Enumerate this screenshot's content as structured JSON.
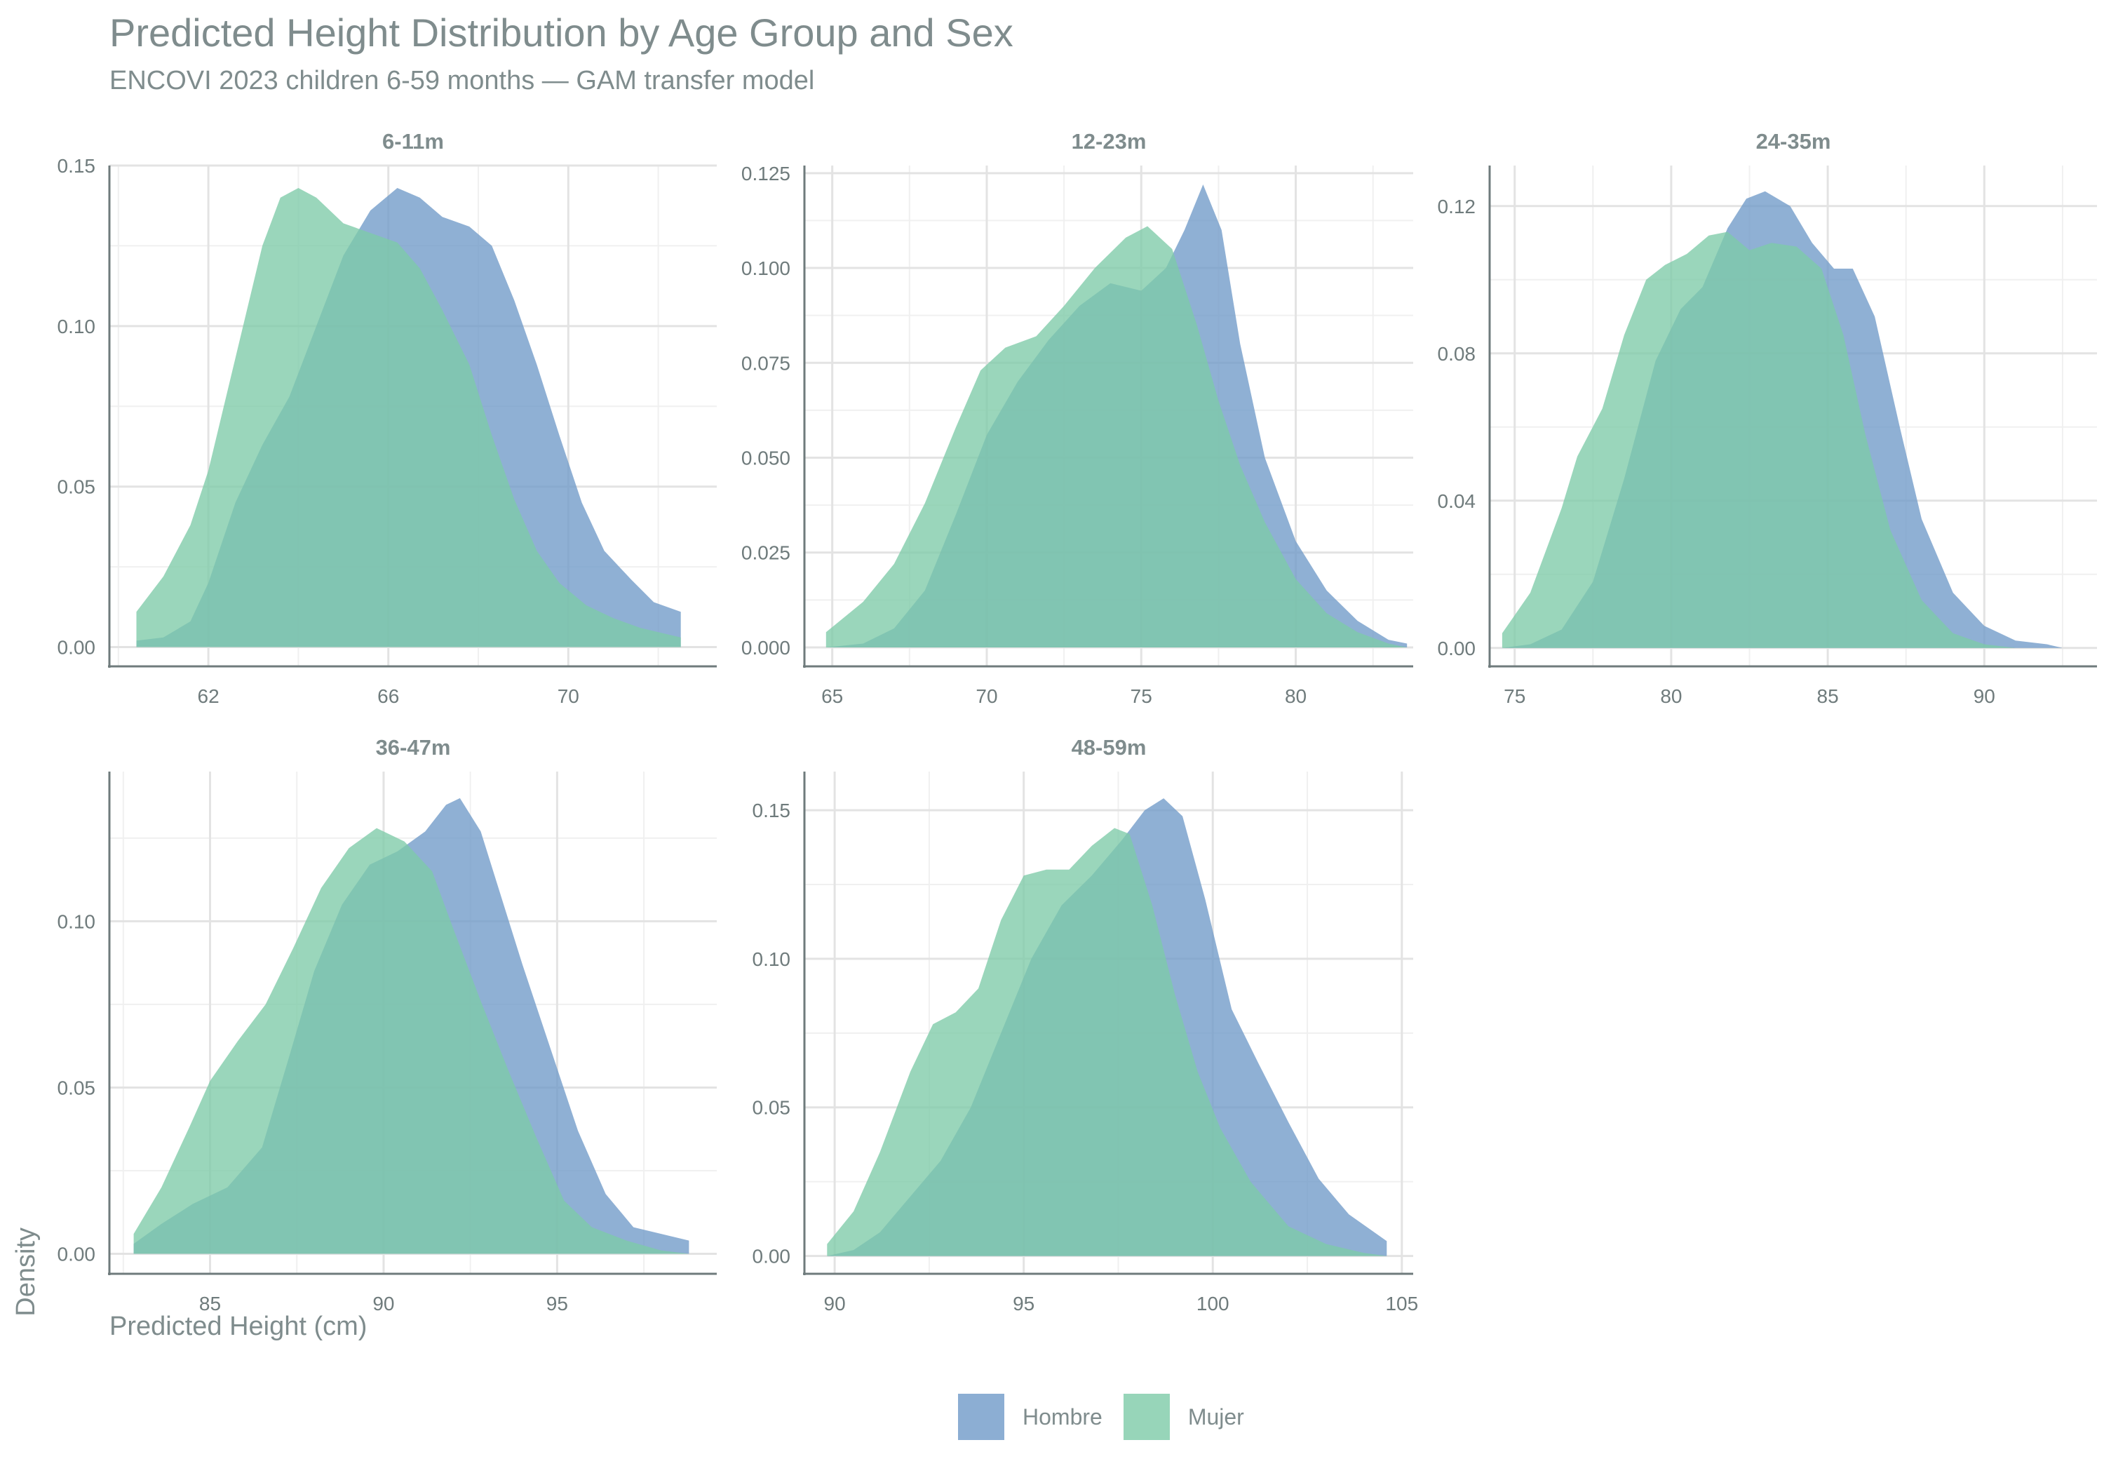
{
  "chart_data": {
    "type": "area",
    "title": "Predicted Height Distribution by Age Group and Sex",
    "subtitle": "ENCOVI 2023 children 6-59 months — GAM transfer model",
    "xlabel": "Predicted Height (cm)",
    "ylabel": "Density",
    "grid": true,
    "legend_position": "bottom",
    "legend": [
      {
        "name": "Hombre",
        "color": "#6f9ac8"
      },
      {
        "name": "Mujer",
        "color": "#7dcaa8"
      }
    ],
    "panels": [
      {
        "label": "6-11m",
        "xlim": [
          59.8,
          73.3
        ],
        "ylim": [
          -0.006,
          0.15
        ],
        "xticks": [
          62,
          66,
          70
        ],
        "yticks": [
          0.0,
          0.05,
          0.1,
          0.15
        ],
        "ytick_labels": [
          "0.00",
          "0.05",
          "0.10",
          "0.15"
        ],
        "series": [
          {
            "name": "Hombre",
            "x": [
              60.4,
              61.0,
              61.6,
              62.0,
              62.6,
              63.2,
              63.8,
              64.4,
              65.0,
              65.6,
              66.2,
              66.7,
              67.2,
              67.8,
              68.3,
              68.8,
              69.3,
              69.8,
              70.3,
              70.8,
              71.4,
              71.9,
              72.5
            ],
            "y": [
              0.002,
              0.003,
              0.008,
              0.02,
              0.045,
              0.063,
              0.078,
              0.1,
              0.122,
              0.136,
              0.143,
              0.14,
              0.134,
              0.131,
              0.125,
              0.108,
              0.088,
              0.066,
              0.045,
              0.03,
              0.021,
              0.014,
              0.011
            ]
          },
          {
            "name": "Mujer",
            "x": [
              60.4,
              61.0,
              61.6,
              62.0,
              62.6,
              63.2,
              63.6,
              64.0,
              64.4,
              65.0,
              65.6,
              66.2,
              66.7,
              67.2,
              67.8,
              68.3,
              68.8,
              69.3,
              69.8,
              70.4,
              71.0,
              71.6,
              72.2,
              72.5
            ],
            "y": [
              0.011,
              0.022,
              0.038,
              0.055,
              0.09,
              0.125,
              0.14,
              0.143,
              0.14,
              0.132,
              0.129,
              0.126,
              0.118,
              0.105,
              0.088,
              0.066,
              0.046,
              0.03,
              0.02,
              0.013,
              0.009,
              0.006,
              0.004,
              0.003
            ]
          }
        ]
      },
      {
        "label": "12-23m",
        "xlim": [
          64.1,
          83.8
        ],
        "ylim": [
          -0.005,
          0.127
        ],
        "xticks": [
          65,
          70,
          75,
          80
        ],
        "yticks": [
          0.0,
          0.025,
          0.05,
          0.075,
          0.1,
          0.125
        ],
        "ytick_labels": [
          "0.000",
          "0.025",
          "0.050",
          "0.075",
          "0.100",
          "0.125"
        ],
        "series": [
          {
            "name": "Hombre",
            "x": [
              64.8,
              66.0,
              67.0,
              68.0,
              69.0,
              70.0,
              71.0,
              72.0,
              73.0,
              74.0,
              75.0,
              75.8,
              76.4,
              77.0,
              77.6,
              78.2,
              79.0,
              80.0,
              81.0,
              82.0,
              83.0,
              83.6
            ],
            "y": [
              0.0,
              0.001,
              0.005,
              0.015,
              0.035,
              0.056,
              0.07,
              0.081,
              0.09,
              0.096,
              0.094,
              0.1,
              0.11,
              0.122,
              0.11,
              0.08,
              0.05,
              0.028,
              0.015,
              0.007,
              0.002,
              0.001
            ]
          },
          {
            "name": "Mujer",
            "x": [
              64.8,
              66.0,
              67.0,
              68.0,
              69.0,
              69.8,
              70.6,
              71.6,
              72.5,
              73.5,
              74.5,
              75.2,
              76.0,
              76.8,
              77.5,
              78.2,
              79.0,
              80.0,
              81.0,
              82.0,
              83.0,
              83.6
            ],
            "y": [
              0.004,
              0.012,
              0.022,
              0.038,
              0.058,
              0.073,
              0.079,
              0.082,
              0.09,
              0.1,
              0.108,
              0.111,
              0.105,
              0.085,
              0.065,
              0.048,
              0.033,
              0.018,
              0.009,
              0.004,
              0.001,
              0.0
            ]
          }
        ]
      },
      {
        "label": "24-35m",
        "xlim": [
          74.2,
          93.6
        ],
        "ylim": [
          -0.005,
          0.131
        ],
        "xticks": [
          75,
          80,
          85,
          90
        ],
        "yticks": [
          0.0,
          0.04,
          0.08,
          0.12
        ],
        "ytick_labels": [
          "0.00",
          "0.04",
          "0.08",
          "0.12"
        ],
        "series": [
          {
            "name": "Hombre",
            "x": [
              74.6,
              75.5,
              76.5,
              77.5,
              78.5,
              79.5,
              80.3,
              81.0,
              81.8,
              82.4,
              83.0,
              83.8,
              84.5,
              85.2,
              85.8,
              86.5,
              87.3,
              88.0,
              89.0,
              90.0,
              91.0,
              92.0,
              92.5
            ],
            "y": [
              0.0,
              0.001,
              0.005,
              0.018,
              0.046,
              0.078,
              0.092,
              0.098,
              0.114,
              0.122,
              0.124,
              0.12,
              0.11,
              0.103,
              0.103,
              0.09,
              0.06,
              0.035,
              0.015,
              0.006,
              0.002,
              0.001,
              0.0
            ]
          },
          {
            "name": "Mujer",
            "x": [
              74.6,
              75.5,
              76.5,
              77.0,
              77.8,
              78.5,
              79.2,
              79.8,
              80.5,
              81.2,
              81.8,
              82.5,
              83.2,
              84.0,
              84.8,
              85.5,
              86.2,
              87.0,
              88.0,
              89.0,
              90.0,
              91.0
            ],
            "y": [
              0.004,
              0.015,
              0.038,
              0.052,
              0.065,
              0.085,
              0.1,
              0.104,
              0.107,
              0.112,
              0.113,
              0.108,
              0.11,
              0.109,
              0.103,
              0.085,
              0.058,
              0.032,
              0.013,
              0.004,
              0.001,
              0.0
            ]
          }
        ]
      },
      {
        "label": "36-47m",
        "xlim": [
          82.1,
          99.6
        ],
        "ylim": [
          -0.006,
          0.145
        ],
        "xticks": [
          85,
          90,
          95
        ],
        "yticks": [
          0.0,
          0.05,
          0.1
        ],
        "ytick_labels": [
          "0.00",
          "0.05",
          "0.10"
        ],
        "series": [
          {
            "name": "Hombre",
            "x": [
              82.8,
              83.6,
              84.5,
              85.5,
              86.5,
              87.3,
              88.0,
              88.8,
              89.6,
              90.4,
              91.2,
              91.8,
              92.2,
              92.8,
              93.4,
              94.0,
              94.8,
              95.6,
              96.4,
              97.2,
              98.0,
              98.8
            ],
            "y": [
              0.003,
              0.009,
              0.015,
              0.02,
              0.032,
              0.06,
              0.085,
              0.105,
              0.117,
              0.121,
              0.127,
              0.135,
              0.137,
              0.127,
              0.107,
              0.087,
              0.062,
              0.037,
              0.018,
              0.008,
              0.006,
              0.004
            ]
          },
          {
            "name": "Mujer",
            "x": [
              82.8,
              83.6,
              84.4,
              85.0,
              85.8,
              86.6,
              87.4,
              88.2,
              89.0,
              89.8,
              90.6,
              91.4,
              92.0,
              92.8,
              93.6,
              94.4,
              95.2,
              96.0,
              97.0,
              98.0,
              98.8
            ],
            "y": [
              0.006,
              0.02,
              0.038,
              0.052,
              0.064,
              0.075,
              0.092,
              0.11,
              0.122,
              0.128,
              0.124,
              0.115,
              0.098,
              0.076,
              0.055,
              0.035,
              0.016,
              0.008,
              0.004,
              0.001,
              0.0
            ]
          }
        ]
      },
      {
        "label": "48-59m",
        "xlim": [
          89.2,
          105.3
        ],
        "ylim": [
          -0.006,
          0.163
        ],
        "xticks": [
          90,
          95,
          100,
          105
        ],
        "yticks": [
          0.0,
          0.05,
          0.1,
          0.15
        ],
        "ytick_labels": [
          "0.00",
          "0.05",
          "0.10",
          "0.15"
        ],
        "series": [
          {
            "name": "Hombre",
            "x": [
              89.8,
              90.5,
              91.2,
              92.0,
              92.8,
              93.6,
              94.4,
              95.2,
              96.0,
              96.8,
              97.6,
              98.2,
              98.7,
              99.2,
              99.8,
              100.5,
              101.2,
              102.0,
              102.8,
              103.6,
              104.6
            ],
            "y": [
              0.0,
              0.002,
              0.008,
              0.02,
              0.032,
              0.05,
              0.075,
              0.1,
              0.118,
              0.128,
              0.14,
              0.15,
              0.154,
              0.148,
              0.12,
              0.083,
              0.065,
              0.045,
              0.026,
              0.014,
              0.005
            ]
          },
          {
            "name": "Mujer",
            "x": [
              89.8,
              90.5,
              91.2,
              92.0,
              92.6,
              93.2,
              93.8,
              94.4,
              95.0,
              95.6,
              96.2,
              96.8,
              97.4,
              97.8,
              98.4,
              99.0,
              99.6,
              100.2,
              101.0,
              102.0,
              103.0,
              104.0,
              104.6
            ],
            "y": [
              0.004,
              0.015,
              0.035,
              0.062,
              0.078,
              0.082,
              0.09,
              0.113,
              0.128,
              0.13,
              0.13,
              0.138,
              0.144,
              0.142,
              0.118,
              0.088,
              0.062,
              0.043,
              0.025,
              0.01,
              0.004,
              0.001,
              0.0
            ]
          }
        ]
      }
    ]
  }
}
